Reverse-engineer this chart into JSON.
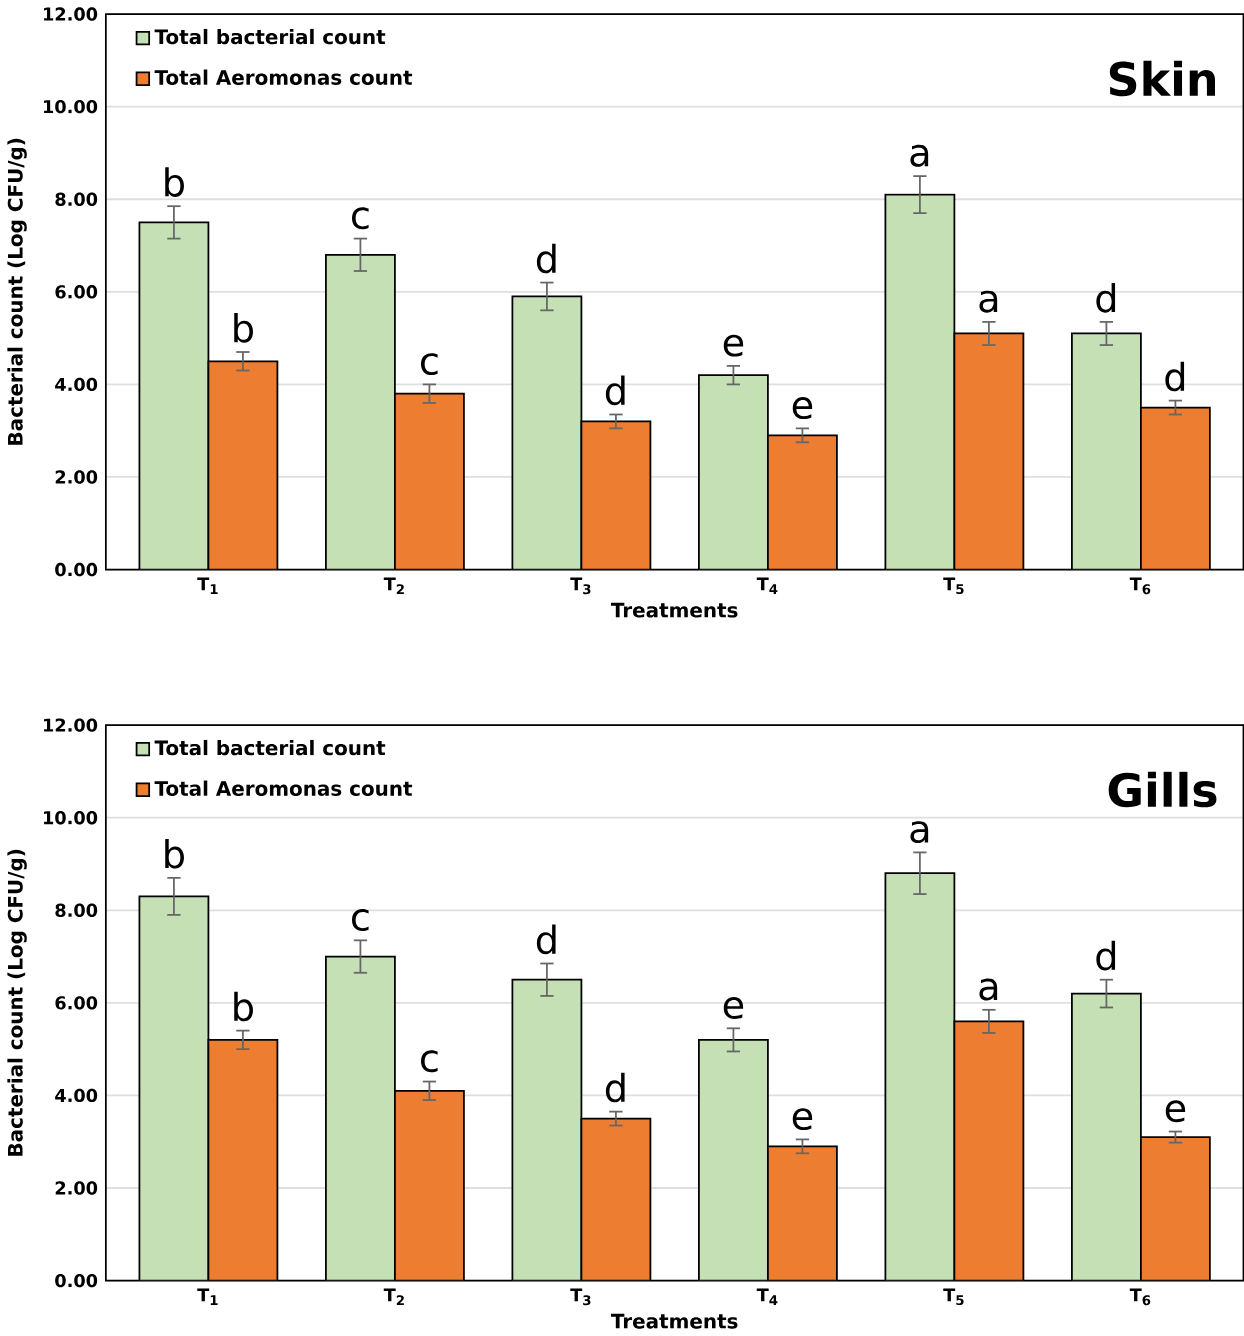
{
  "chart_data": [
    {
      "type": "bar",
      "title": "Skin",
      "xlabel": "Treatments",
      "ylabel": "Bacterial count (Log CFU/g)",
      "categories": [
        "T$_{1}$",
        "T$_{2}$",
        "T$_{3}$",
        "T$_{4}$",
        "T$_{5}$",
        "T$_{6}$"
      ],
      "series": [
        {
          "name": "Total bacterial count",
          "color": "#c5e0b4",
          "values": [
            7.5,
            6.8,
            5.9,
            4.2,
            8.1,
            5.1
          ],
          "errors": [
            0.35,
            0.35,
            0.3,
            0.2,
            0.4,
            0.25
          ]
        },
        {
          "name": "Total Aeromonas count",
          "color": "#ed7d31",
          "values": [
            4.5,
            3.8,
            3.2,
            2.9,
            5.1,
            3.5
          ],
          "errors": [
            0.2,
            0.2,
            0.15,
            0.15,
            0.25,
            0.15
          ]
        }
      ],
      "ylim": [
        0,
        12
      ],
      "yticks": [
        {
          "value": 0,
          "label": "0.00"
        },
        {
          "value": 2,
          "label": "2.00"
        },
        {
          "value": 4,
          "label": "4.00"
        },
        {
          "value": 6,
          "label": "6.00"
        },
        {
          "value": 8,
          "label": "8.00"
        },
        {
          "value": 10,
          "label": "10.00"
        },
        {
          "value": 12,
          "label": "12.00"
        }
      ],
      "grid": "y",
      "legend": "top left",
      "annotations": [
        {
          "text": "b",
          "x": "T$_{1}$",
          "y": 7.5
        },
        {
          "text": "b",
          "x": "T$_{1}$",
          "y": 4.5
        },
        {
          "text": "c",
          "x": "T$_{2}$",
          "y": 6.8
        },
        {
          "text": "c",
          "x": "T$_{2}$",
          "y": 3.8
        },
        {
          "text": "d",
          "x": "T$_{3}$",
          "y": 5.9
        },
        {
          "text": "d",
          "x": "T$_{3}$",
          "y": 3.2
        },
        {
          "text": "e",
          "x": "T$_{4}$",
          "y": 4.2
        },
        {
          "text": "e",
          "x": "T$_{4}$",
          "y": 2.9
        },
        {
          "text": "a",
          "x": "T$_{5}$",
          "y": 8.1
        },
        {
          "text": "a",
          "x": "T$_{5}$",
          "y": 5.1
        },
        {
          "text": "d",
          "x": "T$_{6}$",
          "y": 5.1
        },
        {
          "text": "d",
          "x": "T$_{6}$",
          "y": 3.5
        }
      ]
    },
    {
      "type": "bar",
      "title": "Gills",
      "xlabel": "Treatments",
      "ylabel": "Bacterial count (Log CFU/g)",
      "categories": [
        "T$_{1}$",
        "T$_{2}$",
        "T$_{3}$",
        "T$_{4}$",
        "T$_{5}$",
        "T$_{6}$"
      ],
      "series": [
        {
          "name": "Total bacterial count",
          "color": "#c5e0b4",
          "values": [
            8.3,
            7.0,
            6.5,
            5.2,
            8.8,
            6.2
          ],
          "errors": [
            0.4,
            0.35,
            0.35,
            0.25,
            0.45,
            0.3
          ]
        },
        {
          "name": "Total Aeromonas count",
          "color": "#ed7d31",
          "values": [
            5.2,
            4.1,
            3.5,
            2.9,
            5.6,
            3.1
          ],
          "errors": [
            0.2,
            0.2,
            0.15,
            0.15,
            0.25,
            0.12
          ]
        }
      ],
      "ylim": [
        0,
        12
      ],
      "yticks": [
        {
          "value": 0,
          "label": "0.00"
        },
        {
          "value": 2,
          "label": "2.00"
        },
        {
          "value": 4,
          "label": "4.00"
        },
        {
          "value": 6,
          "label": "6.00"
        },
        {
          "value": 8,
          "label": "8.00"
        },
        {
          "value": 10,
          "label": "10.00"
        },
        {
          "value": 12,
          "label": "12.00"
        }
      ],
      "grid": "y",
      "legend": "top left",
      "annotations": [
        {
          "text": "b",
          "x": "T$_{1}$",
          "y": 8.3
        },
        {
          "text": "b",
          "x": "T$_{1}$",
          "y": 5.2
        },
        {
          "text": "c",
          "x": "T$_{2}$",
          "y": 7.0
        },
        {
          "text": "c",
          "x": "T$_{2}$",
          "y": 4.1
        },
        {
          "text": "d",
          "x": "T$_{3}$",
          "y": 6.5
        },
        {
          "text": "d",
          "x": "T$_{3}$",
          "y": 3.5
        },
        {
          "text": "e",
          "x": "T$_{4}$",
          "y": 5.2
        },
        {
          "text": "e",
          "x": "T$_{4}$",
          "y": 2.9
        },
        {
          "text": "a",
          "x": "T$_{5}$",
          "y": 8.8
        },
        {
          "text": "a",
          "x": "T$_{5}$",
          "y": 5.6
        },
        {
          "text": "d",
          "x": "T$_{6}$",
          "y": 6.2
        },
        {
          "text": "e",
          "x": "T$_{6}$",
          "y": 3.1
        }
      ]
    }
  ]
}
